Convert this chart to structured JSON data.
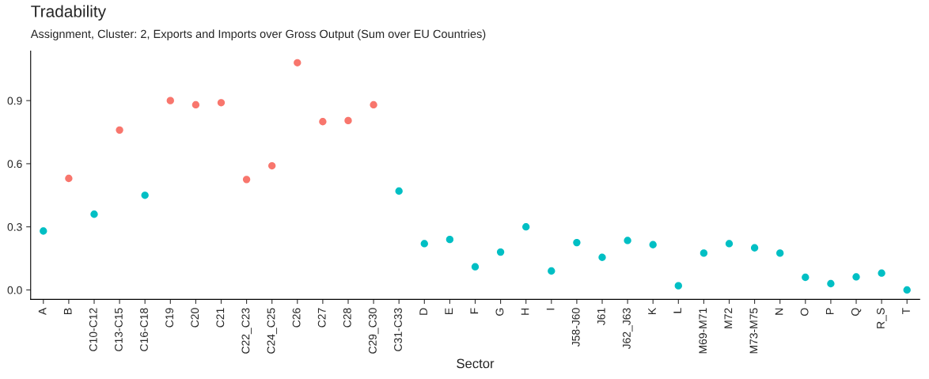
{
  "chart_data": {
    "type": "scatter",
    "title": "Tradability",
    "subtitle": "Assignment, Cluster: 2, Exports and Imports over Gross Output (Sum over EU Countries)",
    "xlabel": "Sector",
    "categories": [
      "A",
      "B",
      "C10-C12",
      "C13-C15",
      "C16-C18",
      "C19",
      "C20",
      "C21",
      "C22_C23",
      "C24_C25",
      "C26",
      "C27",
      "C28",
      "C29_C30",
      "C31-C33",
      "D",
      "E",
      "F",
      "G",
      "H",
      "I",
      "J58-J60",
      "J61",
      "J62_J63",
      "K",
      "L",
      "M69-M71",
      "M72",
      "M73-M75",
      "N",
      "O",
      "P",
      "Q",
      "R_S",
      "T"
    ],
    "series": [
      {
        "color": "#f8766d",
        "values": [
          null,
          0.53,
          null,
          0.76,
          null,
          0.9,
          0.88,
          0.89,
          0.525,
          0.59,
          1.08,
          0.8,
          0.805,
          0.88,
          null,
          null,
          null,
          null,
          null,
          null,
          null,
          null,
          null,
          null,
          null,
          null,
          null,
          null,
          null,
          null,
          null,
          null,
          null,
          null,
          null
        ]
      },
      {
        "color": "#00bfc4",
        "values": [
          0.28,
          null,
          0.36,
          null,
          0.45,
          null,
          null,
          null,
          null,
          null,
          null,
          null,
          null,
          null,
          0.47,
          0.22,
          0.24,
          0.11,
          0.18,
          0.3,
          0.09,
          0.225,
          0.155,
          0.235,
          0.215,
          0.02,
          0.175,
          0.22,
          0.2,
          0.175,
          0.06,
          0.03,
          0.062,
          0.08,
          0.0
        ]
      }
    ],
    "ylim": [
      -0.045,
      1.135
    ],
    "yticks": [
      {
        "value": 0,
        "label": "0.0"
      },
      0.3,
      0.6,
      0.9
    ],
    "grid": false,
    "legend": false,
    "marker": "circle"
  }
}
